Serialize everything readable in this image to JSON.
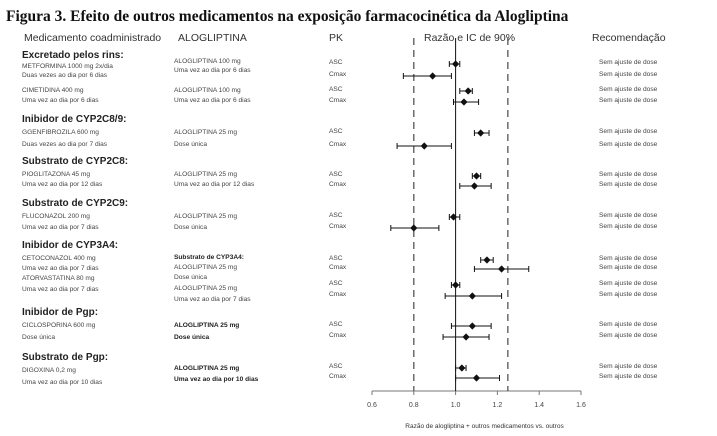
{
  "title": "Figura 3. Efeito de outros medicamentos na exposição farmacocinética da Alogliptina",
  "headers": {
    "medicamento": "Medicamento coadministrado",
    "alogliptina": "ALOGLIPTINA",
    "pk": "PK",
    "razao": "Razão e IC de 90%",
    "recomendacao": "Recomendação"
  },
  "sections": [
    {
      "title": "Excretado pelos rins:",
      "drugs": [
        {
          "name": "METFORMINA 1000 mg 2x/dia",
          "regimen": "Duas vezes ao dia por 6 dias",
          "alo": "ALOGLIPTINA 100 mg",
          "alo_regimen": "Uma vez ao dia por 6 dias"
        },
        {
          "name": "CIMETIDINA 400 mg",
          "regimen": "Uma vez ao dia por 6 dias",
          "alo": "ALOGLIPTINA 100 mg",
          "alo_regimen": "Uma vez ao dia por 6 dias"
        }
      ]
    },
    {
      "title": "Inibidor de CYP2C8/9:",
      "drugs": [
        {
          "name": "GGENFIBROZILA 600 mg",
          "regimen": "Duas vezes ao dia por 7 dias",
          "alo": "ALOGLIPTINA 25 mg",
          "alo_regimen": "Dose única"
        }
      ]
    },
    {
      "title": "Substrato de CYP2C8:",
      "drugs": [
        {
          "name": "PIOGLITAZONA 45 mg",
          "regimen": "Uma vez ao dia por 12 dias",
          "alo": "ALOGLIPTINA 25 mg",
          "alo_regimen": "Uma vez ao dia por 12 dias"
        }
      ]
    },
    {
      "title": "Substrato de CYP2C9:",
      "drugs": [
        {
          "name": "FLUCONAZOL 200 mg",
          "regimen": "Uma vez ao dia por 7 dias",
          "alo": "ALOGLIPTINA 25 mg",
          "alo_regimen": "Dose única"
        }
      ]
    },
    {
      "title": "Inibidor de CYP3A4:",
      "drugs": [
        {
          "name": "CETOCONAZOL 400 mg",
          "regimen": "Uma vez ao dia por 7 dias",
          "alo": "Substrato de CYP3A4:",
          "alo_regimen": "ALOGLIPTINA 25 mg",
          "alo_extra": "Dose única"
        },
        {
          "name": "ATORVASTATINA 80 mg",
          "regimen": "Uma vez ao dia por 7 dias",
          "alo": "ALOGLIPTINA 25 mg",
          "alo_regimen": "Uma vez ao dia por 7 dias"
        }
      ]
    },
    {
      "title": "Inibidor de Pgp:",
      "drugs": [
        {
          "name": "CICLOSPORINA 600 mg",
          "regimen": "Dose única",
          "alo": "ALOGLIPTINA 25 mg",
          "alo_regimen": "Dose única"
        }
      ]
    },
    {
      "title": "Substrato de Pgp:",
      "drugs": [
        {
          "name": "DIGOXINA 0,2 mg",
          "regimen": "Uma vez ao dia por 10 dias",
          "alo": "ALOGLIPTINA 25 mg",
          "alo_regimen": "Uma vez ao dia por 10 dias"
        }
      ]
    }
  ],
  "chart_data": {
    "type": "forest",
    "title": "Razão e IC de 90%",
    "xlabel": "Razão de alogliptina + outros medicamentos vs. outros",
    "xlim": [
      0.6,
      1.6
    ],
    "xticks": [
      "0.6",
      "0.8",
      "1.0",
      "1.2",
      "1.4",
      "1.6"
    ],
    "reference_line": 1.0,
    "bounds_lines": [
      0.8,
      1.25
    ],
    "pk_labels": {
      "auc": "ASC",
      "cmax": "Cmax"
    },
    "recommendation": "Sem ajuste de dose",
    "rows": [
      {
        "drug": "METFORMINA",
        "pk": "ASC",
        "ratio": 1.0,
        "lo": 0.97,
        "hi": 1.02
      },
      {
        "drug": "METFORMINA",
        "pk": "Cmax",
        "ratio": 0.89,
        "lo": 0.75,
        "hi": 0.98
      },
      {
        "drug": "CIMETIDINA",
        "pk": "ASC",
        "ratio": 1.06,
        "lo": 1.02,
        "hi": 1.08
      },
      {
        "drug": "CIMETIDINA",
        "pk": "Cmax",
        "ratio": 1.04,
        "lo": 0.99,
        "hi": 1.11
      },
      {
        "drug": "GGENFIBROZILA",
        "pk": "ASC",
        "ratio": 1.12,
        "lo": 1.09,
        "hi": 1.16
      },
      {
        "drug": "GGENFIBROZILA",
        "pk": "Cmax",
        "ratio": 0.85,
        "lo": 0.72,
        "hi": 0.98
      },
      {
        "drug": "PIOGLITAZONA",
        "pk": "ASC",
        "ratio": 1.1,
        "lo": 1.08,
        "hi": 1.12
      },
      {
        "drug": "PIOGLITAZONA",
        "pk": "Cmax",
        "ratio": 1.09,
        "lo": 1.02,
        "hi": 1.17
      },
      {
        "drug": "FLUCONAZOL",
        "pk": "ASC",
        "ratio": 0.99,
        "lo": 0.97,
        "hi": 1.02
      },
      {
        "drug": "FLUCONAZOL",
        "pk": "Cmax",
        "ratio": 0.8,
        "lo": 0.69,
        "hi": 0.92
      },
      {
        "drug": "CETOCONAZOL",
        "pk": "ASC",
        "ratio": 1.15,
        "lo": 1.12,
        "hi": 1.18
      },
      {
        "drug": "CETOCONAZOL",
        "pk": "Cmax",
        "ratio": 1.22,
        "lo": 1.09,
        "hi": 1.35
      },
      {
        "drug": "ATORVASTATINA",
        "pk": "ASC",
        "ratio": 1.0,
        "lo": 0.98,
        "hi": 1.02
      },
      {
        "drug": "ATORVASTATINA",
        "pk": "Cmax",
        "ratio": 1.08,
        "lo": 0.95,
        "hi": 1.22
      },
      {
        "drug": "CICLOSPORINA",
        "pk": "ASC",
        "ratio": 1.08,
        "lo": 0.98,
        "hi": 1.17
      },
      {
        "drug": "CICLOSPORINA",
        "pk": "Cmax",
        "ratio": 1.05,
        "lo": 0.94,
        "hi": 1.16
      },
      {
        "drug": "DIGOXINA",
        "pk": "ASC",
        "ratio": 1.03,
        "lo": 1.0,
        "hi": 1.05
      },
      {
        "drug": "DIGOXINA",
        "pk": "Cmax",
        "ratio": 1.1,
        "lo": 1.0,
        "hi": 1.21
      }
    ]
  }
}
